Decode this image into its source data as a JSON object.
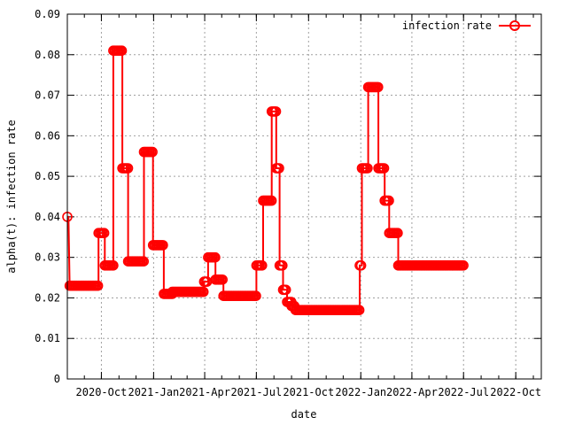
{
  "chart_data": {
    "type": "line",
    "xlabel": "date",
    "ylabel": "alpha(t): infection rate",
    "ylim": [
      0,
      0.09
    ],
    "xlim": [
      "2020-08-02",
      "2022-11-15"
    ],
    "yticks": [
      "0",
      "0.01",
      "0.02",
      "0.03",
      "0.04",
      "0.05",
      "0.06",
      "0.07",
      "0.08",
      "0.09"
    ],
    "xticks": [
      {
        "date": "2020-10-01",
        "label": "2020-Oct"
      },
      {
        "date": "2021-01-01",
        "label": "2021-Jan"
      },
      {
        "date": "2021-04-01",
        "label": "2021-Apr"
      },
      {
        "date": "2021-07-01",
        "label": "2021-Jul"
      },
      {
        "date": "2021-10-01",
        "label": "2021-Oct"
      },
      {
        "date": "2022-01-01",
        "label": "2022-Jan"
      },
      {
        "date": "2022-04-01",
        "label": "2022-Apr"
      },
      {
        "date": "2022-07-01",
        "label": "2022-Jul"
      },
      {
        "date": "2022-10-01",
        "label": "2022-Oct"
      }
    ],
    "grid": true,
    "legend_position": "top-right",
    "colors": {
      "series": "#ff0000",
      "grid": "#a0a0a0",
      "axis": "#000000"
    },
    "series": [
      {
        "name": "infection rate",
        "segments": [
          {
            "start": "2020-08-02",
            "end": "2020-08-04",
            "value": 0.04
          },
          {
            "start": "2020-08-06",
            "end": "2020-09-26",
            "value": 0.023
          },
          {
            "start": "2020-09-26",
            "end": "2020-10-07",
            "value": 0.036
          },
          {
            "start": "2020-10-07",
            "end": "2020-10-22",
            "value": 0.028
          },
          {
            "start": "2020-10-22",
            "end": "2020-11-07",
            "value": 0.081
          },
          {
            "start": "2020-11-07",
            "end": "2020-11-17",
            "value": 0.052
          },
          {
            "start": "2020-11-17",
            "end": "2020-12-15",
            "value": 0.029
          },
          {
            "start": "2020-12-15",
            "end": "2020-12-31",
            "value": 0.056
          },
          {
            "start": "2020-12-31",
            "end": "2021-01-19",
            "value": 0.033
          },
          {
            "start": "2021-01-19",
            "end": "2021-02-03",
            "value": 0.021
          },
          {
            "start": "2021-02-03",
            "end": "2021-03-31",
            "value": 0.0215
          },
          {
            "start": "2021-03-31",
            "end": "2021-04-07",
            "value": 0.024
          },
          {
            "start": "2021-04-07",
            "end": "2021-04-20",
            "value": 0.03
          },
          {
            "start": "2021-04-20",
            "end": "2021-05-04",
            "value": 0.0245
          },
          {
            "start": "2021-05-04",
            "end": "2021-07-01",
            "value": 0.0205
          },
          {
            "start": "2021-07-01",
            "end": "2021-07-13",
            "value": 0.028
          },
          {
            "start": "2021-07-13",
            "end": "2021-07-28",
            "value": 0.044
          },
          {
            "start": "2021-07-28",
            "end": "2021-08-05",
            "value": 0.066
          },
          {
            "start": "2021-08-05",
            "end": "2021-08-11",
            "value": 0.052
          },
          {
            "start": "2021-08-11",
            "end": "2021-08-17",
            "value": 0.028
          },
          {
            "start": "2021-08-17",
            "end": "2021-08-24",
            "value": 0.022
          },
          {
            "start": "2021-08-24",
            "end": "2021-09-01",
            "value": 0.019
          },
          {
            "start": "2021-09-01",
            "end": "2021-09-08",
            "value": 0.018
          },
          {
            "start": "2021-09-08",
            "end": "2021-12-30",
            "value": 0.017
          },
          {
            "start": "2021-12-30",
            "end": "2022-01-03",
            "value": 0.028
          },
          {
            "start": "2022-01-03",
            "end": "2022-01-14",
            "value": 0.052
          },
          {
            "start": "2022-01-14",
            "end": "2022-02-01",
            "value": 0.072
          },
          {
            "start": "2022-02-01",
            "end": "2022-02-12",
            "value": 0.052
          },
          {
            "start": "2022-02-12",
            "end": "2022-02-20",
            "value": 0.044
          },
          {
            "start": "2022-02-20",
            "end": "2022-03-08",
            "value": 0.036
          },
          {
            "start": "2022-03-08",
            "end": "2022-07-03",
            "value": 0.028
          }
        ]
      }
    ]
  }
}
